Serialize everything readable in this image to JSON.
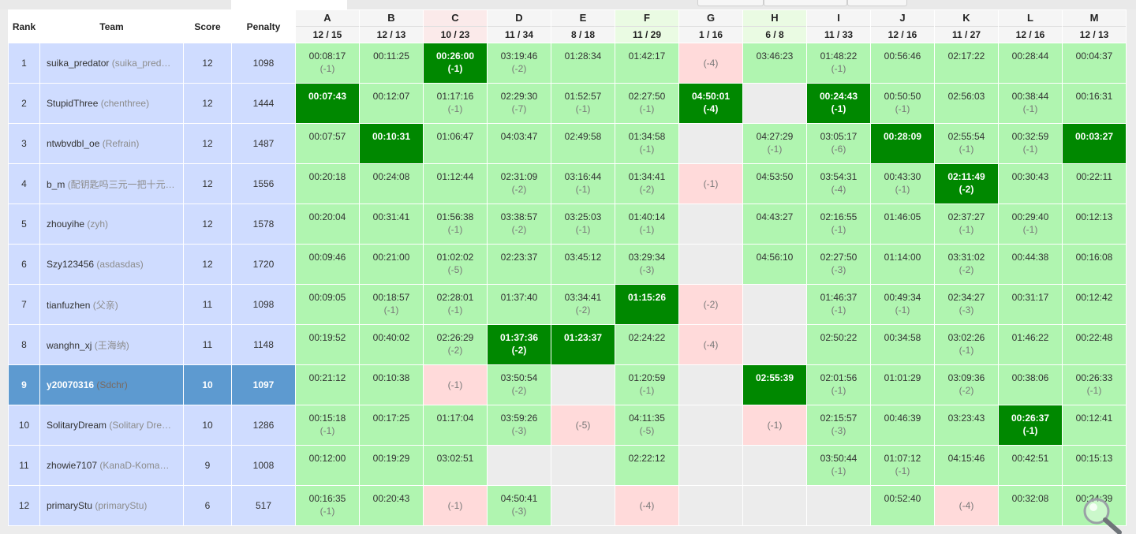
{
  "header": {
    "rank": "Rank",
    "team": "Team",
    "score": "Score",
    "penalty": "Penalty"
  },
  "problems": [
    {
      "letter": "A",
      "stats": "12 / 15"
    },
    {
      "letter": "B",
      "stats": "12 / 13"
    },
    {
      "letter": "C",
      "stats": "10 / 23"
    },
    {
      "letter": "D",
      "stats": "11 / 34"
    },
    {
      "letter": "E",
      "stats": "8 / 18"
    },
    {
      "letter": "F",
      "stats": "11 / 29"
    },
    {
      "letter": "G",
      "stats": "1 / 16"
    },
    {
      "letter": "H",
      "stats": "6 / 8"
    },
    {
      "letter": "I",
      "stats": "11 / 33"
    },
    {
      "letter": "J",
      "stats": "12 / 16"
    },
    {
      "letter": "K",
      "stats": "11 / 27"
    },
    {
      "letter": "L",
      "stats": "12 / 16"
    },
    {
      "letter": "M",
      "stats": "12 / 13"
    }
  ],
  "rows": [
    {
      "rank": "1",
      "name": "suika_predator",
      "alias": "(suika_pred…",
      "score": "12",
      "penalty": "1098",
      "cells": [
        {
          "s": "ac",
          "t": "00:08:17",
          "n": "(-1)"
        },
        {
          "s": "ac",
          "t": "00:11:25",
          "n": ""
        },
        {
          "s": "fb",
          "t": "00:26:00",
          "n": "(-1)"
        },
        {
          "s": "ac",
          "t": "03:19:46",
          "n": "(-2)"
        },
        {
          "s": "ac",
          "t": "01:28:34",
          "n": ""
        },
        {
          "s": "ac",
          "t": "01:42:17",
          "n": ""
        },
        {
          "s": "wa",
          "t": "",
          "n": "(-4)"
        },
        {
          "s": "ac",
          "t": "03:46:23",
          "n": ""
        },
        {
          "s": "ac",
          "t": "01:48:22",
          "n": "(-1)"
        },
        {
          "s": "ac",
          "t": "00:56:46",
          "n": ""
        },
        {
          "s": "ac",
          "t": "02:17:22",
          "n": ""
        },
        {
          "s": "ac",
          "t": "00:28:44",
          "n": ""
        },
        {
          "s": "ac",
          "t": "00:04:37",
          "n": ""
        }
      ]
    },
    {
      "rank": "2",
      "name": "StupidThree",
      "alias": "(chenthree)",
      "score": "12",
      "penalty": "1444",
      "cells": [
        {
          "s": "fb",
          "t": "00:07:43",
          "n": ""
        },
        {
          "s": "ac",
          "t": "00:12:07",
          "n": ""
        },
        {
          "s": "ac",
          "t": "01:17:16",
          "n": "(-1)"
        },
        {
          "s": "ac",
          "t": "02:29:30",
          "n": "(-7)"
        },
        {
          "s": "ac",
          "t": "01:52:57",
          "n": "(-1)"
        },
        {
          "s": "ac",
          "t": "02:27:50",
          "n": "(-1)"
        },
        {
          "s": "fb",
          "t": "04:50:01",
          "n": "(-4)"
        },
        {
          "s": "na",
          "t": "",
          "n": ""
        },
        {
          "s": "fb",
          "t": "00:24:43",
          "n": "(-1)"
        },
        {
          "s": "ac",
          "t": "00:50:50",
          "n": "(-1)"
        },
        {
          "s": "ac",
          "t": "02:56:03",
          "n": ""
        },
        {
          "s": "ac",
          "t": "00:38:44",
          "n": "(-1)"
        },
        {
          "s": "ac",
          "t": "00:16:31",
          "n": ""
        }
      ]
    },
    {
      "rank": "3",
      "name": "ntwbvdbl_oe",
      "alias": "(Refrain)",
      "score": "12",
      "penalty": "1487",
      "cells": [
        {
          "s": "ac",
          "t": "00:07:57",
          "n": ""
        },
        {
          "s": "fb",
          "t": "00:10:31",
          "n": ""
        },
        {
          "s": "ac",
          "t": "01:06:47",
          "n": ""
        },
        {
          "s": "ac",
          "t": "04:03:47",
          "n": ""
        },
        {
          "s": "ac",
          "t": "02:49:58",
          "n": ""
        },
        {
          "s": "ac",
          "t": "01:34:58",
          "n": "(-1)"
        },
        {
          "s": "na",
          "t": "",
          "n": ""
        },
        {
          "s": "ac",
          "t": "04:27:29",
          "n": "(-1)"
        },
        {
          "s": "ac",
          "t": "03:05:17",
          "n": "(-6)"
        },
        {
          "s": "fb",
          "t": "00:28:09",
          "n": ""
        },
        {
          "s": "ac",
          "t": "02:55:54",
          "n": "(-1)"
        },
        {
          "s": "ac",
          "t": "00:32:59",
          "n": "(-1)"
        },
        {
          "s": "fb",
          "t": "00:03:27",
          "n": ""
        }
      ]
    },
    {
      "rank": "4",
      "name": "b_m",
      "alias": "(配钥匙吗三元一把十元…",
      "score": "12",
      "penalty": "1556",
      "cells": [
        {
          "s": "ac",
          "t": "00:20:18",
          "n": ""
        },
        {
          "s": "ac",
          "t": "00:24:08",
          "n": ""
        },
        {
          "s": "ac",
          "t": "01:12:44",
          "n": ""
        },
        {
          "s": "ac",
          "t": "02:31:09",
          "n": "(-2)"
        },
        {
          "s": "ac",
          "t": "03:16:44",
          "n": "(-1)"
        },
        {
          "s": "ac",
          "t": "01:34:41",
          "n": "(-2)"
        },
        {
          "s": "wa",
          "t": "",
          "n": "(-1)"
        },
        {
          "s": "ac",
          "t": "04:53:50",
          "n": ""
        },
        {
          "s": "ac",
          "t": "03:54:31",
          "n": "(-4)"
        },
        {
          "s": "ac",
          "t": "00:43:30",
          "n": "(-1)"
        },
        {
          "s": "fb",
          "t": "02:11:49",
          "n": "(-2)"
        },
        {
          "s": "ac",
          "t": "00:30:43",
          "n": ""
        },
        {
          "s": "ac",
          "t": "00:22:11",
          "n": ""
        }
      ]
    },
    {
      "rank": "5",
      "name": "zhouyihe",
      "alias": "(zyh)",
      "score": "12",
      "penalty": "1578",
      "cells": [
        {
          "s": "ac",
          "t": "00:20:04",
          "n": ""
        },
        {
          "s": "ac",
          "t": "00:31:41",
          "n": ""
        },
        {
          "s": "ac",
          "t": "01:56:38",
          "n": "(-1)"
        },
        {
          "s": "ac",
          "t": "03:38:57",
          "n": "(-2)"
        },
        {
          "s": "ac",
          "t": "03:25:03",
          "n": "(-1)"
        },
        {
          "s": "ac",
          "t": "01:40:14",
          "n": "(-1)"
        },
        {
          "s": "na",
          "t": "",
          "n": ""
        },
        {
          "s": "ac",
          "t": "04:43:27",
          "n": ""
        },
        {
          "s": "ac",
          "t": "02:16:55",
          "n": "(-1)"
        },
        {
          "s": "ac",
          "t": "01:46:05",
          "n": ""
        },
        {
          "s": "ac",
          "t": "02:37:27",
          "n": "(-1)"
        },
        {
          "s": "ac",
          "t": "00:29:40",
          "n": "(-1)"
        },
        {
          "s": "ac",
          "t": "00:12:13",
          "n": ""
        }
      ]
    },
    {
      "rank": "6",
      "name": "Szy123456",
      "alias": "(asdasdas)",
      "score": "12",
      "penalty": "1720",
      "cells": [
        {
          "s": "ac",
          "t": "00:09:46",
          "n": ""
        },
        {
          "s": "ac",
          "t": "00:21:00",
          "n": ""
        },
        {
          "s": "ac",
          "t": "01:02:02",
          "n": "(-5)"
        },
        {
          "s": "ac",
          "t": "02:23:37",
          "n": ""
        },
        {
          "s": "ac",
          "t": "03:45:12",
          "n": ""
        },
        {
          "s": "ac",
          "t": "03:29:34",
          "n": "(-3)"
        },
        {
          "s": "na",
          "t": "",
          "n": ""
        },
        {
          "s": "ac",
          "t": "04:56:10",
          "n": ""
        },
        {
          "s": "ac",
          "t": "02:27:50",
          "n": "(-3)"
        },
        {
          "s": "ac",
          "t": "01:14:00",
          "n": ""
        },
        {
          "s": "ac",
          "t": "03:31:02",
          "n": "(-2)"
        },
        {
          "s": "ac",
          "t": "00:44:38",
          "n": ""
        },
        {
          "s": "ac",
          "t": "00:16:08",
          "n": ""
        }
      ]
    },
    {
      "rank": "7",
      "name": "tianfuzhen",
      "alias": "(父亲)",
      "score": "11",
      "penalty": "1098",
      "cells": [
        {
          "s": "ac",
          "t": "00:09:05",
          "n": ""
        },
        {
          "s": "ac",
          "t": "00:18:57",
          "n": "(-1)"
        },
        {
          "s": "ac",
          "t": "02:28:01",
          "n": "(-1)"
        },
        {
          "s": "ac",
          "t": "01:37:40",
          "n": ""
        },
        {
          "s": "ac",
          "t": "03:34:41",
          "n": "(-2)"
        },
        {
          "s": "fb",
          "t": "01:15:26",
          "n": ""
        },
        {
          "s": "wa",
          "t": "",
          "n": "(-2)"
        },
        {
          "s": "na",
          "t": "",
          "n": ""
        },
        {
          "s": "ac",
          "t": "01:46:37",
          "n": "(-1)"
        },
        {
          "s": "ac",
          "t": "00:49:34",
          "n": "(-1)"
        },
        {
          "s": "ac",
          "t": "02:34:27",
          "n": "(-3)"
        },
        {
          "s": "ac",
          "t": "00:31:17",
          "n": ""
        },
        {
          "s": "ac",
          "t": "00:12:42",
          "n": ""
        }
      ]
    },
    {
      "rank": "8",
      "name": "wanghn_xj",
      "alias": "(王海纳)",
      "score": "11",
      "penalty": "1148",
      "cells": [
        {
          "s": "ac",
          "t": "00:19:52",
          "n": ""
        },
        {
          "s": "ac",
          "t": "00:40:02",
          "n": ""
        },
        {
          "s": "ac",
          "t": "02:26:29",
          "n": "(-2)"
        },
        {
          "s": "fb",
          "t": "01:37:36",
          "n": "(-2)"
        },
        {
          "s": "fb",
          "t": "01:23:37",
          "n": ""
        },
        {
          "s": "ac",
          "t": "02:24:22",
          "n": ""
        },
        {
          "s": "wa",
          "t": "",
          "n": "(-4)"
        },
        {
          "s": "na",
          "t": "",
          "n": ""
        },
        {
          "s": "ac",
          "t": "02:50:22",
          "n": ""
        },
        {
          "s": "ac",
          "t": "00:34:58",
          "n": ""
        },
        {
          "s": "ac",
          "t": "03:02:26",
          "n": "(-1)"
        },
        {
          "s": "ac",
          "t": "01:46:22",
          "n": ""
        },
        {
          "s": "ac",
          "t": "00:22:48",
          "n": ""
        }
      ]
    },
    {
      "rank": "9",
      "name": "y20070316",
      "alias": "(Sdchr)",
      "score": "10",
      "penalty": "1097",
      "me": true,
      "cells": [
        {
          "s": "ac",
          "t": "00:21:12",
          "n": ""
        },
        {
          "s": "ac",
          "t": "00:10:38",
          "n": ""
        },
        {
          "s": "wa",
          "t": "",
          "n": "(-1)"
        },
        {
          "s": "ac",
          "t": "03:50:54",
          "n": "(-2)"
        },
        {
          "s": "na",
          "t": "",
          "n": ""
        },
        {
          "s": "ac",
          "t": "01:20:59",
          "n": "(-1)"
        },
        {
          "s": "na",
          "t": "",
          "n": ""
        },
        {
          "s": "fb",
          "t": "02:55:39",
          "n": ""
        },
        {
          "s": "ac",
          "t": "02:01:56",
          "n": "(-1)"
        },
        {
          "s": "ac",
          "t": "01:01:29",
          "n": ""
        },
        {
          "s": "ac",
          "t": "03:09:36",
          "n": "(-2)"
        },
        {
          "s": "ac",
          "t": "00:38:06",
          "n": ""
        },
        {
          "s": "ac",
          "t": "00:26:33",
          "n": "(-1)"
        }
      ]
    },
    {
      "rank": "10",
      "name": "SolitaryDream",
      "alias": "(Solitary Dre…",
      "score": "10",
      "penalty": "1286",
      "cells": [
        {
          "s": "ac",
          "t": "00:15:18",
          "n": "(-1)"
        },
        {
          "s": "ac",
          "t": "00:17:25",
          "n": ""
        },
        {
          "s": "ac",
          "t": "01:17:04",
          "n": ""
        },
        {
          "s": "ac",
          "t": "03:59:26",
          "n": "(-3)"
        },
        {
          "s": "wa",
          "t": "",
          "n": "(-5)"
        },
        {
          "s": "ac",
          "t": "04:11:35",
          "n": "(-5)"
        },
        {
          "s": "na",
          "t": "",
          "n": ""
        },
        {
          "s": "wa",
          "t": "",
          "n": "(-1)"
        },
        {
          "s": "ac",
          "t": "02:15:57",
          "n": "(-3)"
        },
        {
          "s": "ac",
          "t": "00:46:39",
          "n": ""
        },
        {
          "s": "ac",
          "t": "03:23:43",
          "n": ""
        },
        {
          "s": "fb",
          "t": "00:26:37",
          "n": "(-1)"
        },
        {
          "s": "ac",
          "t": "00:12:41",
          "n": ""
        }
      ]
    },
    {
      "rank": "11",
      "name": "zhowie7107",
      "alias": "(KanaD-Koma…",
      "score": "9",
      "penalty": "1008",
      "cells": [
        {
          "s": "ac",
          "t": "00:12:00",
          "n": ""
        },
        {
          "s": "ac",
          "t": "00:19:29",
          "n": ""
        },
        {
          "s": "ac",
          "t": "03:02:51",
          "n": ""
        },
        {
          "s": "na",
          "t": "",
          "n": ""
        },
        {
          "s": "na",
          "t": "",
          "n": ""
        },
        {
          "s": "ac",
          "t": "02:22:12",
          "n": ""
        },
        {
          "s": "na",
          "t": "",
          "n": ""
        },
        {
          "s": "na",
          "t": "",
          "n": ""
        },
        {
          "s": "ac",
          "t": "03:50:44",
          "n": "(-1)"
        },
        {
          "s": "ac",
          "t": "01:07:12",
          "n": "(-1)"
        },
        {
          "s": "ac",
          "t": "04:15:46",
          "n": ""
        },
        {
          "s": "ac",
          "t": "00:42:51",
          "n": ""
        },
        {
          "s": "ac",
          "t": "00:15:13",
          "n": ""
        }
      ]
    },
    {
      "rank": "12",
      "name": "primaryStu",
      "alias": "(primaryStu)",
      "score": "6",
      "penalty": "517",
      "cells": [
        {
          "s": "ac",
          "t": "00:16:35",
          "n": "(-1)"
        },
        {
          "s": "ac",
          "t": "00:20:43",
          "n": ""
        },
        {
          "s": "wa",
          "t": "",
          "n": "(-1)"
        },
        {
          "s": "ac",
          "t": "04:50:41",
          "n": "(-3)"
        },
        {
          "s": "na",
          "t": "",
          "n": ""
        },
        {
          "s": "wa",
          "t": "",
          "n": "(-4)"
        },
        {
          "s": "na",
          "t": "",
          "n": ""
        },
        {
          "s": "na",
          "t": "",
          "n": ""
        },
        {
          "s": "na",
          "t": "",
          "n": ""
        },
        {
          "s": "ac",
          "t": "00:52:40",
          "n": ""
        },
        {
          "s": "wa",
          "t": "",
          "n": "(-4)"
        },
        {
          "s": "ac",
          "t": "00:32:08",
          "n": ""
        },
        {
          "s": "ac",
          "t": "00:24:39",
          "n": ""
        }
      ]
    }
  ],
  "colors": {
    "accepted": "#b0f5b0",
    "first_blood": "#008800",
    "wrong": "#ffdada",
    "team_bg": "#cfdcff",
    "highlight": "#5d9ad0"
  },
  "icons": {
    "zoom": "magnifier-icon"
  }
}
